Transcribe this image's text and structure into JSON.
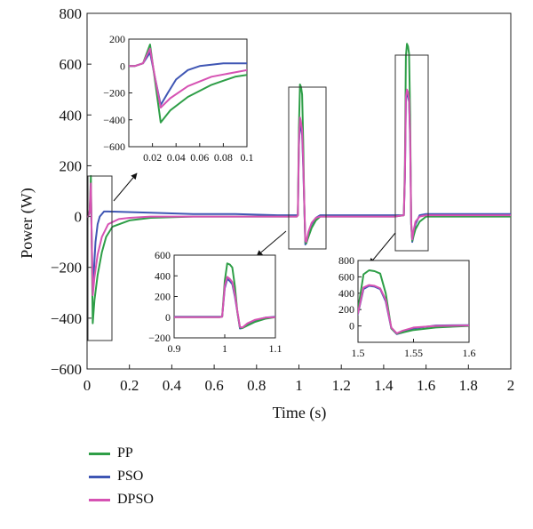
{
  "colors": {
    "pp": "#2e9e47",
    "pso": "#3f56b4",
    "dpso": "#d652b3"
  },
  "legend": [
    {
      "key": "pp",
      "label": "PP"
    },
    {
      "key": "pso",
      "label": "PSO"
    },
    {
      "key": "dpso",
      "label": "DPSO"
    }
  ],
  "chart_data": {
    "type": "line",
    "title": "",
    "xlabel": "Time (s)",
    "ylabel": "Power (W)",
    "xlim": [
      0,
      2
    ],
    "ylim": [
      -600,
      800
    ],
    "x_ticks": [
      "0",
      "0.2",
      "0.4",
      "0.6",
      "0.8",
      "1",
      "1.2",
      "1.4",
      "1.6",
      "1.8",
      "2"
    ],
    "y_ticks": [
      "−600",
      "−400",
      "−200",
      "0",
      "200",
      "400",
      "600",
      "800"
    ],
    "grid": false,
    "legend_position": "bottom-left",
    "series": [
      {
        "name": "PP",
        "color": "#2e9e47",
        "x": [
          0,
          0.005,
          0.012,
          0.018,
          0.022,
          0.027,
          0.035,
          0.05,
          0.07,
          0.09,
          0.12,
          0.2,
          0.3,
          0.5,
          0.7,
          0.9,
          0.99,
          0.995,
          1.0,
          1.005,
          1.01,
          1.015,
          1.02,
          1.025,
          1.03,
          1.035,
          1.045,
          1.06,
          1.08,
          1.1,
          1.2,
          1.3,
          1.45,
          1.495,
          1.5,
          1.505,
          1.51,
          1.515,
          1.52,
          1.525,
          1.53,
          1.535,
          1.54,
          1.55,
          1.57,
          1.6,
          1.8,
          2.0
        ],
        "y": [
          0,
          0,
          20,
          160,
          -100,
          -420,
          -330,
          -230,
          -140,
          -80,
          -40,
          -15,
          -5,
          0,
          0,
          0,
          0,
          5,
          350,
          520,
          510,
          480,
          300,
          50,
          -100,
          -105,
          -80,
          -45,
          -15,
          0,
          0,
          0,
          0,
          5,
          200,
          630,
          680,
          670,
          640,
          400,
          -30,
          -95,
          -80,
          -50,
          -20,
          0,
          0,
          0
        ]
      },
      {
        "name": "PSO",
        "color": "#3f56b4",
        "x": [
          0,
          0.005,
          0.012,
          0.018,
          0.022,
          0.027,
          0.033,
          0.04,
          0.05,
          0.06,
          0.08,
          0.1,
          0.3,
          0.5,
          0.7,
          0.9,
          0.99,
          0.995,
          1.0,
          1.005,
          1.01,
          1.015,
          1.02,
          1.025,
          1.03,
          1.035,
          1.045,
          1.06,
          1.08,
          1.1,
          1.2,
          1.3,
          1.45,
          1.495,
          1.5,
          1.505,
          1.51,
          1.515,
          1.52,
          1.525,
          1.53,
          1.535,
          1.54,
          1.55,
          1.57,
          1.6,
          1.8,
          2.0
        ],
        "y": [
          0,
          0,
          20,
          100,
          -80,
          -290,
          -200,
          -100,
          -30,
          0,
          20,
          20,
          15,
          10,
          10,
          5,
          5,
          5,
          280,
          370,
          350,
          320,
          200,
          50,
          -110,
          -105,
          -70,
          -30,
          -5,
          5,
          5,
          5,
          5,
          5,
          150,
          450,
          490,
          480,
          450,
          300,
          -30,
          -100,
          -80,
          -30,
          5,
          10,
          10,
          10
        ]
      },
      {
        "name": "DPSO",
        "color": "#d652b3",
        "x": [
          0,
          0.005,
          0.012,
          0.018,
          0.022,
          0.027,
          0.035,
          0.05,
          0.07,
          0.1,
          0.15,
          0.2,
          0.3,
          0.5,
          0.7,
          0.9,
          0.99,
          0.995,
          1.0,
          1.005,
          1.01,
          1.015,
          1.02,
          1.025,
          1.03,
          1.035,
          1.045,
          1.06,
          1.08,
          1.1,
          1.2,
          1.3,
          1.45,
          1.495,
          1.5,
          1.505,
          1.51,
          1.515,
          1.52,
          1.525,
          1.53,
          1.535,
          1.54,
          1.55,
          1.57,
          1.6,
          1.8,
          2.0
        ],
        "y": [
          0,
          0,
          20,
          130,
          -80,
          -310,
          -240,
          -150,
          -80,
          -30,
          -10,
          -5,
          0,
          0,
          0,
          0,
          0,
          5,
          300,
          390,
          370,
          340,
          220,
          60,
          -95,
          -100,
          -60,
          -25,
          -5,
          0,
          0,
          0,
          0,
          5,
          160,
          470,
          500,
          490,
          460,
          320,
          -20,
          -90,
          -60,
          -20,
          0,
          5,
          5,
          5
        ]
      }
    ],
    "insets": [
      {
        "xlim": [
          0,
          0.1
        ],
        "ylim": [
          -600,
          200
        ],
        "x_ticks": [
          "0.02",
          "0.04",
          "0.06",
          "0.08",
          "0.1"
        ],
        "y_ticks": [
          "200",
          "0",
          "−200",
          "−400",
          "−600"
        ]
      },
      {
        "xlim": [
          0.9,
          1.1
        ],
        "ylim": [
          -200,
          600
        ],
        "x_ticks": [
          "0.9",
          "1",
          "1.1"
        ],
        "y_ticks": [
          "600",
          "400",
          "200",
          "0",
          "−200"
        ]
      },
      {
        "xlim": [
          1.5,
          1.6
        ],
        "ylim": [
          -200,
          800
        ],
        "x_ticks": [
          "1.5",
          "1.55",
          "1.6"
        ],
        "y_ticks": [
          "800",
          "600",
          "400",
          "200",
          "0"
        ]
      }
    ]
  }
}
